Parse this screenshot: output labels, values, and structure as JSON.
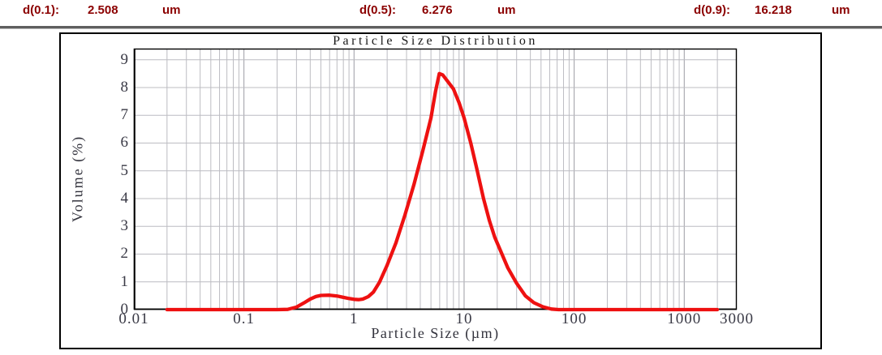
{
  "header": {
    "items": [
      {
        "label": "d(0.1):",
        "value": "2.508",
        "unit": "um"
      },
      {
        "label": "d(0.5):",
        "value": "6.276",
        "unit": "um"
      },
      {
        "label": "d(0.9):",
        "value": "16.218",
        "unit": "um"
      }
    ],
    "text_color": "#8b0000"
  },
  "chart_data": {
    "type": "line",
    "title": "Particle Size Distribution",
    "xlabel": "Particle Size (µm)",
    "ylabel": "Volume (%)",
    "x_scale": "log",
    "xlim": [
      0.01,
      3000
    ],
    "ylim": [
      0,
      9.4
    ],
    "x_ticks": [
      0.01,
      0.1,
      1,
      10,
      100,
      1000,
      3000
    ],
    "x_tick_labels": [
      "0.01",
      "0.1",
      "1",
      "10",
      "100",
      "1000",
      "3000"
    ],
    "y_ticks": [
      0,
      1,
      2,
      3,
      4,
      5,
      6,
      7,
      8,
      9
    ],
    "grid": true,
    "legend_position": "none",
    "colors": {
      "curve": "#ee1111",
      "grid_minor": "#bcbcc2",
      "grid_major": "#9c9ca4",
      "axis": "#000000"
    },
    "series": [
      {
        "name": "Volume (%)",
        "color": "#ee1111",
        "points": [
          [
            0.02,
            0
          ],
          [
            0.05,
            0
          ],
          [
            0.1,
            0
          ],
          [
            0.15,
            0
          ],
          [
            0.2,
            0
          ],
          [
            0.25,
            0.01
          ],
          [
            0.3,
            0.09
          ],
          [
            0.35,
            0.24
          ],
          [
            0.4,
            0.38
          ],
          [
            0.45,
            0.47
          ],
          [
            0.5,
            0.51
          ],
          [
            0.6,
            0.52
          ],
          [
            0.7,
            0.49
          ],
          [
            0.8,
            0.44
          ],
          [
            0.9,
            0.4
          ],
          [
            1.0,
            0.37
          ],
          [
            1.1,
            0.36
          ],
          [
            1.2,
            0.38
          ],
          [
            1.35,
            0.47
          ],
          [
            1.5,
            0.63
          ],
          [
            1.7,
            0.98
          ],
          [
            2.0,
            1.6
          ],
          [
            2.4,
            2.4
          ],
          [
            2.9,
            3.4
          ],
          [
            3.5,
            4.5
          ],
          [
            4.2,
            5.7
          ],
          [
            5.0,
            6.9
          ],
          [
            5.5,
            7.85
          ],
          [
            5.95,
            8.5
          ],
          [
            6.4,
            8.45
          ],
          [
            7.0,
            8.25
          ],
          [
            8.0,
            7.95
          ],
          [
            9.0,
            7.45
          ],
          [
            10.0,
            6.9
          ],
          [
            11.5,
            6.0
          ],
          [
            13.0,
            5.1
          ],
          [
            15.0,
            4.0
          ],
          [
            17.0,
            3.2
          ],
          [
            19.0,
            2.6
          ],
          [
            21.0,
            2.2
          ],
          [
            25.0,
            1.5
          ],
          [
            30.0,
            0.95
          ],
          [
            36.0,
            0.5
          ],
          [
            43.0,
            0.25
          ],
          [
            52.0,
            0.1
          ],
          [
            62.0,
            0.02
          ],
          [
            72.0,
            0
          ],
          [
            100,
            0
          ],
          [
            200,
            0
          ],
          [
            500,
            0
          ],
          [
            1000,
            0
          ],
          [
            2000,
            0
          ]
        ]
      }
    ]
  }
}
